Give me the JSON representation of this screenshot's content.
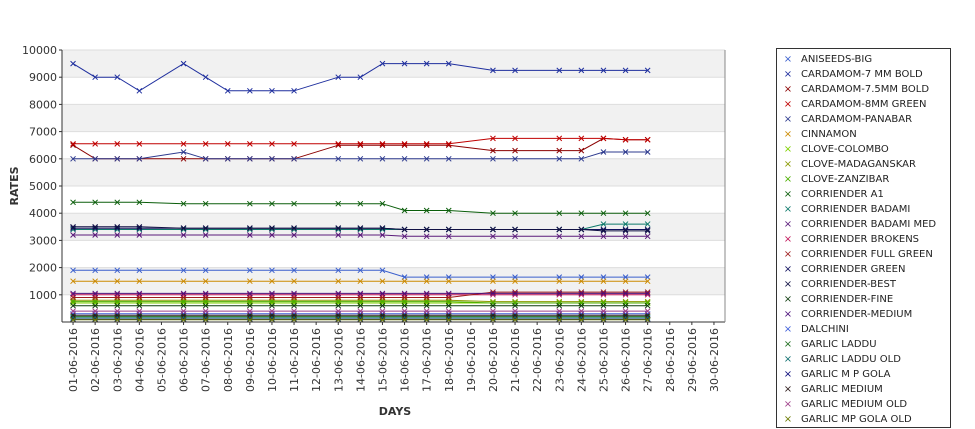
{
  "chart_data": {
    "type": "line",
    "xlabel": "DAYS",
    "ylabel": "RATES",
    "ylim": [
      0,
      10000
    ],
    "yticks": [
      "10000",
      "9000",
      "8000",
      "7000",
      "6000",
      "5000",
      "4000",
      "3000",
      "2000",
      "1000"
    ],
    "grid": "alternating horizontal bands",
    "legend_position": "right",
    "x": [
      "01-06-2016",
      "02-06-2016",
      "03-06-2016",
      "04-06-2016",
      "05-06-2016",
      "06-06-2016",
      "07-06-2016",
      "08-06-2016",
      "09-06-2016",
      "10-06-2016",
      "11-06-2016",
      "12-06-2016",
      "13-06-2016",
      "14-06-2016",
      "15-06-2016",
      "16-06-2016",
      "17-06-2016",
      "18-06-2016",
      "19-06-2016",
      "20-06-2016",
      "21-06-2016",
      "22-06-2016",
      "23-06-2016",
      "24-06-2016",
      "25-06-2016",
      "26-06-2016",
      "27-06-2016",
      "28-06-2016",
      "29-06-2016",
      "30-06-2016"
    ],
    "series": [
      {
        "name": "ANISEEDS-BIG",
        "color": "#3a5fcd",
        "values": [
          1900,
          1900,
          1900,
          1900,
          null,
          1900,
          1900,
          null,
          1900,
          1900,
          1900,
          null,
          1900,
          1900,
          1900,
          1650,
          1650,
          1650,
          null,
          1650,
          1650,
          null,
          1650,
          1650,
          1650,
          1650,
          1650,
          null,
          null,
          null
        ]
      },
      {
        "name": "CARDAMOM-7 MM BOLD",
        "color": "#1f2f9e",
        "values": [
          9500,
          9000,
          9000,
          8500,
          null,
          9500,
          9000,
          8500,
          8500,
          8500,
          8500,
          null,
          9000,
          9000,
          9500,
          9500,
          9500,
          9500,
          null,
          9250,
          9250,
          null,
          9250,
          9250,
          9250,
          9250,
          9250,
          null,
          null,
          null
        ]
      },
      {
        "name": "CARDAMOM-7.5MM BOLD",
        "color": "#8b0000",
        "values": [
          6500,
          6000,
          6000,
          6000,
          null,
          6000,
          6000,
          6000,
          6000,
          6000,
          6000,
          null,
          6500,
          6500,
          6500,
          6500,
          6500,
          6500,
          null,
          6300,
          6300,
          null,
          6300,
          6300,
          6750,
          6700,
          6700,
          null,
          null,
          null
        ]
      },
      {
        "name": "CARDAMOM-8MM GREEN",
        "color": "#c00000",
        "values": [
          6550,
          6550,
          6550,
          6550,
          null,
          6550,
          6550,
          6550,
          6550,
          6550,
          6550,
          null,
          6550,
          6550,
          6550,
          6550,
          6550,
          6550,
          null,
          6750,
          6750,
          null,
          6750,
          6750,
          6750,
          6700,
          6700,
          null,
          null,
          null
        ]
      },
      {
        "name": "CARDAMOM-PANABAR",
        "color": "#2e3b8f",
        "values": [
          6000,
          6000,
          6000,
          6000,
          null,
          6250,
          6000,
          6000,
          6000,
          6000,
          6000,
          null,
          6000,
          6000,
          6000,
          6000,
          6000,
          6000,
          null,
          6000,
          6000,
          null,
          6000,
          6000,
          6250,
          6250,
          6250,
          null,
          null,
          null
        ]
      },
      {
        "name": "CINNAMON",
        "color": "#cc8a00",
        "values": [
          1500,
          1500,
          1500,
          1500,
          null,
          1500,
          1500,
          null,
          1500,
          1500,
          1500,
          null,
          1500,
          1500,
          1500,
          1500,
          1500,
          1500,
          null,
          1500,
          1500,
          null,
          1500,
          1500,
          1500,
          1500,
          1500,
          null,
          null,
          null
        ]
      },
      {
        "name": "CLOVE-COLOMBO",
        "color": "#7fd100",
        "values": [
          700,
          700,
          700,
          700,
          null,
          700,
          700,
          null,
          700,
          700,
          700,
          null,
          700,
          700,
          700,
          700,
          700,
          700,
          null,
          700,
          700,
          null,
          700,
          700,
          700,
          700,
          700,
          null,
          null,
          null
        ]
      },
      {
        "name": "CLOVE-MADAGANSKAR",
        "color": "#8a9a00",
        "values": [
          800,
          800,
          800,
          800,
          null,
          800,
          800,
          null,
          800,
          800,
          800,
          null,
          800,
          800,
          800,
          800,
          800,
          800,
          null,
          750,
          750,
          null,
          750,
          750,
          750,
          750,
          750,
          null,
          null,
          null
        ]
      },
      {
        "name": "CLOVE-ZANZIBAR",
        "color": "#4caf00",
        "values": [
          750,
          750,
          750,
          750,
          null,
          750,
          750,
          null,
          750,
          750,
          750,
          null,
          750,
          750,
          750,
          750,
          750,
          750,
          null,
          700,
          700,
          null,
          700,
          700,
          700,
          700,
          700,
          null,
          null,
          null
        ]
      },
      {
        "name": "CORRIENDER A1",
        "color": "#0b5e0b",
        "values": [
          4400,
          4400,
          4400,
          4400,
          null,
          4350,
          4350,
          null,
          4350,
          4350,
          4350,
          null,
          4350,
          4350,
          4350,
          4100,
          4100,
          4100,
          null,
          4000,
          4000,
          null,
          4000,
          4000,
          4000,
          4000,
          4000,
          null,
          null,
          null
        ]
      },
      {
        "name": "CORRIENDER BADAMI",
        "color": "#0d7a6b",
        "values": [
          3400,
          3400,
          3400,
          3400,
          null,
          3400,
          3400,
          null,
          3400,
          3400,
          3400,
          null,
          3400,
          3400,
          3400,
          3400,
          3400,
          3400,
          null,
          3400,
          3400,
          null,
          3400,
          3400,
          3600,
          3600,
          3600,
          null,
          null,
          null
        ]
      },
      {
        "name": "CORRIENDER BADAMI MED",
        "color": "#5a1a7a",
        "values": [
          3200,
          3200,
          3200,
          3200,
          null,
          3200,
          3200,
          null,
          3200,
          3200,
          3200,
          null,
          3200,
          3200,
          3200,
          3150,
          3150,
          3150,
          null,
          3150,
          3150,
          null,
          3150,
          3150,
          3150,
          3150,
          3150,
          null,
          null,
          null
        ]
      },
      {
        "name": "CORRIENDER BROKENS",
        "color": "#c2185b",
        "values": [
          1000,
          1000,
          1000,
          1000,
          null,
          1000,
          1000,
          null,
          1000,
          1000,
          1000,
          null,
          1000,
          1000,
          1000,
          1000,
          1000,
          1000,
          null,
          1000,
          1000,
          null,
          1000,
          1000,
          1000,
          1000,
          1000,
          null,
          null,
          null
        ]
      },
      {
        "name": "CORRIENDER FULL GREEN",
        "color": "#9e1b1b",
        "values": [
          900,
          900,
          900,
          900,
          null,
          900,
          900,
          null,
          900,
          900,
          900,
          null,
          900,
          900,
          900,
          900,
          900,
          900,
          null,
          1100,
          1100,
          null,
          1100,
          1100,
          1100,
          1100,
          1100,
          null,
          null,
          null
        ]
      },
      {
        "name": "CORRIENDER GREEN",
        "color": "#10105e",
        "values": [
          3450,
          3450,
          3450,
          3450,
          null,
          3450,
          3450,
          null,
          3450,
          3450,
          3450,
          null,
          3450,
          3450,
          3450,
          3400,
          3400,
          3400,
          null,
          3400,
          3400,
          null,
          3400,
          3400,
          3400,
          3400,
          3400,
          null,
          null,
          null
        ]
      },
      {
        "name": "CORRIENDER-BEST",
        "color": "#111144",
        "values": [
          3500,
          3500,
          3500,
          3500,
          null,
          3450,
          3450,
          null,
          3450,
          3450,
          3450,
          null,
          3450,
          3450,
          3450,
          3400,
          3400,
          3400,
          null,
          3400,
          3400,
          null,
          3400,
          3400,
          3350,
          3350,
          3350,
          null,
          null,
          null
        ]
      },
      {
        "name": "CORRIENDER-FINE",
        "color": "#0e3d0e",
        "values": [
          600,
          600,
          600,
          600,
          null,
          600,
          600,
          null,
          600,
          600,
          600,
          null,
          600,
          600,
          600,
          600,
          600,
          600,
          null,
          600,
          600,
          null,
          600,
          600,
          600,
          600,
          600,
          null,
          null,
          null
        ]
      },
      {
        "name": "CORRIENDER-MEDIUM",
        "color": "#4b0f7a",
        "values": [
          1050,
          1050,
          1050,
          1050,
          null,
          1050,
          1050,
          null,
          1050,
          1050,
          1050,
          null,
          1050,
          1050,
          1050,
          1050,
          1050,
          1050,
          null,
          1050,
          1050,
          null,
          1050,
          1050,
          1050,
          1050,
          1050,
          null,
          null,
          null
        ]
      },
      {
        "name": "DALCHINI",
        "color": "#3f5fd9",
        "values": [
          300,
          300,
          300,
          300,
          null,
          300,
          300,
          null,
          300,
          300,
          300,
          null,
          300,
          300,
          300,
          300,
          300,
          300,
          null,
          300,
          300,
          null,
          300,
          300,
          300,
          300,
          300,
          null,
          null,
          null
        ]
      },
      {
        "name": "GARLIC LADDU",
        "color": "#1e6e1e",
        "values": [
          200,
          200,
          200,
          200,
          null,
          200,
          200,
          null,
          200,
          200,
          200,
          null,
          200,
          200,
          200,
          200,
          200,
          200,
          null,
          200,
          200,
          null,
          200,
          200,
          200,
          200,
          200,
          null,
          null,
          null
        ]
      },
      {
        "name": "GARLIC LADDU OLD",
        "color": "#107070",
        "values": [
          150,
          150,
          150,
          150,
          null,
          150,
          150,
          null,
          150,
          150,
          150,
          null,
          150,
          150,
          150,
          150,
          150,
          150,
          null,
          150,
          150,
          null,
          150,
          150,
          150,
          150,
          150,
          null,
          null,
          null
        ]
      },
      {
        "name": "GARLIC M P GOLA",
        "color": "#0a0a7a",
        "values": [
          100,
          100,
          100,
          100,
          null,
          100,
          100,
          null,
          100,
          100,
          100,
          null,
          100,
          100,
          100,
          100,
          100,
          100,
          null,
          100,
          100,
          null,
          100,
          100,
          100,
          100,
          100,
          null,
          null,
          null
        ]
      },
      {
        "name": "GARLIC MEDIUM",
        "color": "#2d1a1a",
        "values": [
          250,
          250,
          250,
          250,
          null,
          250,
          250,
          null,
          250,
          250,
          250,
          null,
          250,
          250,
          250,
          250,
          250,
          250,
          null,
          250,
          250,
          null,
          250,
          250,
          250,
          250,
          250,
          null,
          null,
          null
        ]
      },
      {
        "name": "GARLIC MEDIUM OLD",
        "color": "#a0408a",
        "values": [
          400,
          400,
          400,
          400,
          null,
          400,
          400,
          null,
          400,
          400,
          400,
          null,
          400,
          400,
          400,
          400,
          400,
          400,
          null,
          400,
          400,
          null,
          400,
          400,
          400,
          400,
          400,
          null,
          null,
          null
        ]
      },
      {
        "name": "GARLIC MP GOLA OLD",
        "color": "#6b7a00",
        "values": [
          80,
          80,
          80,
          80,
          null,
          80,
          80,
          null,
          80,
          80,
          80,
          null,
          80,
          80,
          80,
          80,
          80,
          80,
          null,
          80,
          80,
          null,
          80,
          80,
          80,
          80,
          80,
          null,
          null,
          null
        ]
      }
    ]
  }
}
